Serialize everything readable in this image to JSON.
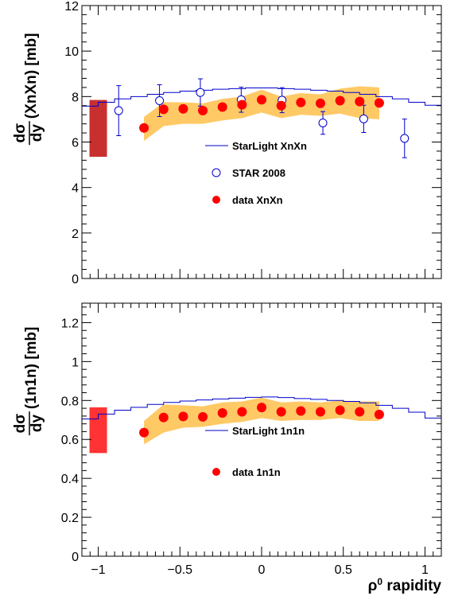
{
  "chart_data": [
    {
      "type": "scatter",
      "panel": "top",
      "ylabel_num": "dσ",
      "ylabel_den": "dy",
      "ylabel_suffix": "(XnXn) [mb]",
      "xlim": [
        -1.1,
        1.1
      ],
      "ylim": [
        0,
        12
      ],
      "yticks": [
        0,
        2,
        4,
        6,
        8,
        10,
        12
      ],
      "ytick_labels": [
        "0",
        "2",
        "4",
        "6",
        "8",
        "10",
        "12"
      ],
      "legend": [
        "StarLight XnXn",
        "STAR 2008",
        "data XnXn"
      ],
      "norm_uncertainty_box": {
        "x": -1.0,
        "ylow": 5.35,
        "yhigh": 7.85,
        "color": "#c83030"
      },
      "starlight": {
        "edges": [
          -1.1,
          -1.0,
          -0.9,
          -0.8,
          -0.7,
          -0.6,
          -0.5,
          -0.4,
          -0.3,
          -0.2,
          -0.1,
          0.0,
          0.1,
          0.2,
          0.3,
          0.4,
          0.5,
          0.6,
          0.7,
          0.8,
          0.9,
          1.0,
          1.1
        ],
        "values": [
          7.58,
          7.75,
          7.9,
          8.0,
          8.1,
          8.18,
          8.24,
          8.28,
          8.32,
          8.35,
          8.38,
          8.38,
          8.35,
          8.32,
          8.28,
          8.24,
          8.18,
          8.1,
          8.0,
          7.9,
          7.75,
          7.62
        ],
        "color": "#0000cc"
      },
      "star2008": {
        "x": [
          -0.875,
          -0.625,
          -0.375,
          -0.125,
          0.125,
          0.375,
          0.625,
          0.875
        ],
        "y": [
          7.38,
          7.82,
          8.18,
          7.86,
          7.84,
          6.84,
          7.02,
          6.16
        ],
        "err": [
          1.1,
          0.7,
          0.6,
          0.55,
          0.55,
          0.5,
          0.6,
          0.85
        ],
        "color": "#0000cc"
      },
      "data": {
        "x": [
          -0.72,
          -0.6,
          -0.48,
          -0.36,
          -0.24,
          -0.12,
          0.0,
          0.12,
          0.24,
          0.36,
          0.48,
          0.6,
          0.72
        ],
        "y": [
          6.62,
          7.44,
          7.46,
          7.38,
          7.54,
          7.64,
          7.86,
          7.6,
          7.74,
          7.7,
          7.82,
          7.78,
          7.72
        ],
        "color": "#ff0000"
      },
      "band": {
        "x": [
          -0.72,
          -0.6,
          -0.48,
          -0.36,
          -0.24,
          -0.12,
          0.0,
          0.12,
          0.24,
          0.36,
          0.48,
          0.6,
          0.72
        ],
        "lo": [
          6.05,
          6.7,
          6.8,
          6.8,
          6.95,
          7.05,
          7.3,
          7.05,
          7.2,
          7.15,
          7.25,
          7.05,
          7.0
        ],
        "hi": [
          7.1,
          7.75,
          7.75,
          7.7,
          7.9,
          8.0,
          8.3,
          8.0,
          8.15,
          8.1,
          8.35,
          8.45,
          8.4
        ],
        "color": "#ffc966"
      }
    },
    {
      "type": "scatter",
      "panel": "bottom",
      "ylabel_num": "dσ",
      "ylabel_den": "dy",
      "ylabel_suffix": "(1n1n) [mb]",
      "xlabel_sup": "0",
      "xlabel_pre": "ρ",
      "xlabel_post": " rapidity",
      "xlim": [
        -1.1,
        1.1
      ],
      "ylim": [
        0,
        1.3
      ],
      "yticks": [
        0,
        0.2,
        0.4,
        0.6,
        0.8,
        1.0,
        1.2
      ],
      "ytick_labels": [
        "0",
        "0.2",
        "0.4",
        "0.6",
        "0.8",
        "1",
        "1.2"
      ],
      "xticks": [
        -1,
        -0.5,
        0,
        0.5,
        1
      ],
      "xtick_labels": [
        "−1",
        "−0.5",
        "0",
        "0.5",
        "1"
      ],
      "legend": [
        "StarLight 1n1n",
        "data 1n1n"
      ],
      "norm_uncertainty_box": {
        "x": -1.0,
        "ylow": 0.53,
        "yhigh": 0.765,
        "color": "#ff3333"
      },
      "starlight": {
        "edges": [
          -1.1,
          -1.0,
          -0.9,
          -0.8,
          -0.7,
          -0.6,
          -0.5,
          -0.4,
          -0.3,
          -0.2,
          -0.1,
          0.0,
          0.1,
          0.2,
          0.3,
          0.4,
          0.5,
          0.6,
          0.7,
          0.8,
          0.9,
          1.0,
          1.1
        ],
        "values": [
          0.705,
          0.73,
          0.75,
          0.765,
          0.78,
          0.79,
          0.797,
          0.803,
          0.808,
          0.812,
          0.816,
          0.818,
          0.815,
          0.81,
          0.806,
          0.8,
          0.795,
          0.788,
          0.775,
          0.76,
          0.74,
          0.71
        ],
        "color": "#0000cc"
      },
      "data": {
        "x": [
          -0.72,
          -0.6,
          -0.48,
          -0.36,
          -0.24,
          -0.12,
          0.0,
          0.12,
          0.24,
          0.36,
          0.48,
          0.6,
          0.72
        ],
        "y": [
          0.635,
          0.713,
          0.718,
          0.716,
          0.736,
          0.742,
          0.764,
          0.742,
          0.746,
          0.742,
          0.75,
          0.742,
          0.728
        ],
        "color": "#ff0000"
      },
      "band": {
        "x": [
          -0.72,
          -0.6,
          -0.48,
          -0.36,
          -0.24,
          -0.12,
          0.0,
          0.12,
          0.24,
          0.36,
          0.48,
          0.6,
          0.72
        ],
        "lo": [
          0.575,
          0.635,
          0.66,
          0.665,
          0.68,
          0.69,
          0.71,
          0.695,
          0.7,
          0.7,
          0.71,
          0.695,
          0.695
        ],
        "hi": [
          0.695,
          0.78,
          0.775,
          0.77,
          0.79,
          0.795,
          0.815,
          0.79,
          0.795,
          0.79,
          0.8,
          0.795,
          0.795
        ],
        "color": "#ffc966"
      }
    }
  ]
}
